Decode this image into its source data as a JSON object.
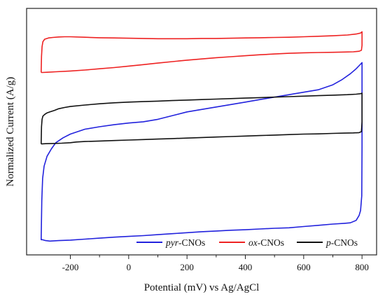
{
  "chart_data": {
    "type": "line",
    "title": "",
    "xlabel": "Potential (mV) vs Ag/AgCl",
    "ylabel": "Normalized Current (A/g)",
    "xlim": [
      -350,
      850
    ],
    "ylim": [
      0,
      100
    ],
    "x_ticks": [
      -200,
      0,
      200,
      400,
      600,
      800
    ],
    "x_tick_labels": [
      "-200",
      "0",
      "200",
      "400",
      "600",
      "800"
    ],
    "y_tick_labels_shown": false,
    "grid": false,
    "legend": {
      "placement": "bottom-right",
      "entries": [
        {
          "italic": "pyr",
          "rest": "-CNOs",
          "color": "#2222dd"
        },
        {
          "italic": "ox",
          "rest": "-CNOs",
          "color": "#ee2222"
        },
        {
          "italic": "p",
          "rest": "-CNOs",
          "color": "#111111"
        }
      ]
    },
    "series": [
      {
        "name": "pyr-CNOs",
        "color": "#2222dd",
        "x": [
          -300,
          -298,
          -295,
          -290,
          -280,
          -265,
          -250,
          -225,
          -200,
          -150,
          -100,
          -50,
          0,
          50,
          100,
          150,
          200,
          250,
          300,
          350,
          400,
          450,
          500,
          550,
          600,
          650,
          700,
          730,
          760,
          780,
          792,
          800,
          800,
          799,
          795,
          790,
          780,
          760,
          740,
          700,
          650,
          600,
          550,
          500,
          450,
          400,
          350,
          300,
          250,
          200,
          150,
          100,
          50,
          0,
          -50,
          -100,
          -150,
          -200,
          -240,
          -270,
          -285,
          -294,
          -298,
          -300,
          -300
        ],
        "y": [
          6,
          22,
          31,
          36,
          40,
          43,
          45.5,
          47.5,
          49,
          51,
          52,
          52.8,
          53.5,
          54,
          55,
          56.5,
          58,
          59,
          60,
          61,
          62,
          63,
          64,
          65,
          66,
          67,
          69,
          71,
          73.5,
          75.5,
          77,
          78,
          44,
          24,
          18,
          16,
          14,
          13,
          12.8,
          12.5,
          12,
          11.5,
          11,
          10.8,
          10.5,
          10.2,
          10,
          9.7,
          9.4,
          9,
          8.6,
          8.2,
          7.8,
          7.5,
          7.2,
          6.8,
          6.4,
          6,
          5.8,
          5.6,
          5.8,
          6.1,
          6.2,
          6.1,
          6
        ]
      },
      {
        "name": "ox-CNOs",
        "color": "#ee2222",
        "x": [
          -300,
          -299,
          -297,
          -294,
          -288,
          -275,
          -260,
          -240,
          -220,
          -200,
          -150,
          -100,
          -50,
          0,
          50,
          100,
          150,
          200,
          250,
          300,
          350,
          400,
          450,
          500,
          550,
          600,
          650,
          700,
          750,
          780,
          795,
          800,
          800,
          798,
          790,
          770,
          740,
          700,
          650,
          600,
          550,
          500,
          450,
          400,
          350,
          300,
          250,
          200,
          150,
          100,
          50,
          0,
          -50,
          -100,
          -150,
          -200,
          -250,
          -280,
          -295,
          -300
        ],
        "y": [
          74,
          80.5,
          84.5,
          86.5,
          87.5,
          88,
          88.2,
          88.4,
          88.5,
          88.5,
          88.3,
          88.1,
          88,
          87.9,
          87.8,
          87.7,
          87.7,
          87.7,
          87.8,
          87.8,
          87.9,
          88,
          88.1,
          88.2,
          88.3,
          88.5,
          88.7,
          88.9,
          89.2,
          89.6,
          90,
          90.5,
          85,
          83,
          82.6,
          82.4,
          82.3,
          82.2,
          82.1,
          82,
          81.8,
          81.5,
          81.2,
          80.8,
          80.4,
          80,
          79.5,
          79,
          78.4,
          77.8,
          77.2,
          76.6,
          76,
          75.5,
          75,
          74.6,
          74.3,
          74.1,
          74,
          74
        ]
      },
      {
        "name": "p-CNOs",
        "color": "#111111",
        "x": [
          -300,
          -299,
          -297,
          -294,
          -288,
          -280,
          -270,
          -255,
          -240,
          -220,
          -200,
          -150,
          -100,
          -50,
          0,
          50,
          100,
          150,
          200,
          250,
          300,
          350,
          400,
          450,
          500,
          550,
          600,
          650,
          700,
          750,
          780,
          795,
          800,
          800,
          798,
          790,
          770,
          740,
          700,
          650,
          600,
          550,
          500,
          450,
          400,
          350,
          300,
          250,
          200,
          150,
          100,
          50,
          0,
          -50,
          -100,
          -150,
          -180,
          -200,
          -230,
          -260,
          -285,
          -300
        ],
        "y": [
          45,
          52,
          55,
          56.3,
          57,
          57.6,
          58,
          58.6,
          59.3,
          59.8,
          60.2,
          60.8,
          61.3,
          61.7,
          62,
          62.2,
          62.4,
          62.6,
          62.8,
          63,
          63.2,
          63.4,
          63.6,
          63.8,
          64,
          64.2,
          64.4,
          64.6,
          64.8,
          65,
          65.2,
          65.4,
          65.6,
          54,
          50,
          49.6,
          49.5,
          49.4,
          49.3,
          49.1,
          49,
          48.8,
          48.6,
          48.4,
          48.2,
          48,
          47.8,
          47.6,
          47.4,
          47.2,
          47,
          46.8,
          46.6,
          46.4,
          46.2,
          46,
          45.8,
          45.5,
          45.3,
          45.2,
          45.1,
          45
        ]
      }
    ]
  }
}
